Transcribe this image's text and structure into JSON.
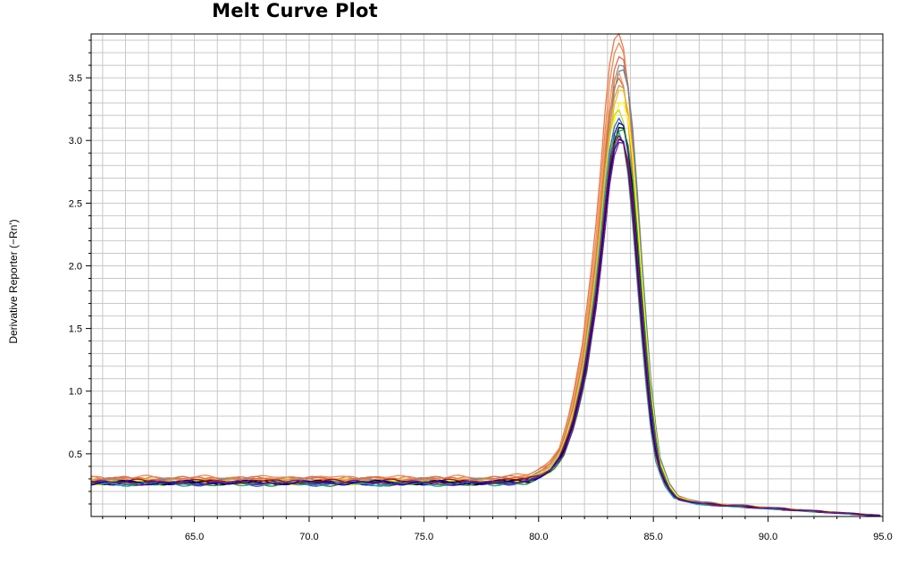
{
  "chart_data": {
    "type": "line",
    "title": "Melt Curve Plot",
    "xlabel": "",
    "ylabel": "Derivative Reporter (−Rn')",
    "xlim": [
      60.5,
      95.0
    ],
    "ylim": [
      0.0,
      3.85
    ],
    "x_ticks": [
      65.0,
      70.0,
      75.0,
      80.0,
      85.0,
      90.0,
      95.0
    ],
    "x_tick_labels": [
      "65.0",
      "70.0",
      "75.0",
      "80.0",
      "85.0",
      "90.0",
      "95.0"
    ],
    "y_ticks": [
      0.5,
      1.0,
      1.5,
      2.0,
      2.5,
      3.0,
      3.5
    ],
    "y_tick_labels": [
      "0.5",
      "1.0",
      "1.5",
      "2.0",
      "2.5",
      "3.0",
      "3.5"
    ],
    "grid": true,
    "legend": "none",
    "curve_shape": {
      "x": [
        60.5,
        62.0,
        64.0,
        66.0,
        68.0,
        70.0,
        72.0,
        74.0,
        76.0,
        78.0,
        79.5,
        80.5,
        81.0,
        81.5,
        82.0,
        82.5,
        82.8,
        83.0,
        83.2,
        83.4,
        83.55,
        83.7,
        83.9,
        84.1,
        84.3,
        84.6,
        84.9,
        85.2,
        85.6,
        86.0,
        87.0,
        88.0,
        90.0,
        92.0,
        94.0,
        95.0
      ],
      "relative": [
        0,
        0,
        0,
        0,
        0,
        0,
        0,
        0,
        0,
        0,
        0.005,
        0.03,
        0.07,
        0.16,
        0.3,
        0.52,
        0.7,
        0.84,
        0.94,
        0.99,
        1.0,
        0.99,
        0.93,
        0.81,
        0.65,
        0.42,
        0.22,
        0.1,
        0.04,
        0.01,
        0,
        0,
        0,
        0,
        0,
        0
      ]
    },
    "series": [
      {
        "color": "#e8784a",
        "peak": 3.86,
        "baseline": 0.3,
        "tail": 0.05
      },
      {
        "color": "#e98a55",
        "peak": 3.78,
        "baseline": 0.31,
        "tail": 0.05
      },
      {
        "color": "#d9704a",
        "peak": 3.68,
        "baseline": 0.3,
        "tail": 0.05
      },
      {
        "color": "#8c8c8c",
        "peak": 3.62,
        "baseline": 0.29,
        "tail": 0.05
      },
      {
        "color": "#6e7f9a",
        "peak": 3.58,
        "baseline": 0.28,
        "tail": 0.06
      },
      {
        "color": "#f4a460",
        "peak": 3.55,
        "baseline": 0.29,
        "tail": 0.05
      },
      {
        "color": "#e07040",
        "peak": 3.5,
        "baseline": 0.3,
        "tail": 0.05
      },
      {
        "color": "#c8a24b",
        "peak": 3.45,
        "baseline": 0.28,
        "tail": 0.05
      },
      {
        "color": "#f0c020",
        "peak": 3.42,
        "baseline": 0.28,
        "tail": 0.05
      },
      {
        "color": "#ffff00",
        "peak": 3.32,
        "baseline": 0.27,
        "tail": 0.05
      },
      {
        "color": "#c8d432",
        "peak": 3.25,
        "baseline": 0.27,
        "tail": 0.05
      },
      {
        "color": "#2e6ad6",
        "peak": 3.18,
        "baseline": 0.26,
        "tail": 0.04
      },
      {
        "color": "#0a1a8c",
        "peak": 3.15,
        "baseline": 0.27,
        "tail": 0.04
      },
      {
        "color": "#000000",
        "peak": 3.12,
        "baseline": 0.27,
        "tail": 0.04
      },
      {
        "color": "#1e9040",
        "peak": 3.1,
        "baseline": 0.26,
        "tail": 0.04
      },
      {
        "color": "#2aa0a0",
        "peak": 3.07,
        "baseline": 0.26,
        "tail": 0.04
      },
      {
        "color": "#a01010",
        "peak": 3.04,
        "baseline": 0.28,
        "tail": 0.05
      },
      {
        "color": "#0000c0",
        "peak": 3.02,
        "baseline": 0.27,
        "tail": 0.045
      },
      {
        "color": "#7a1a7a",
        "peak": 3.0,
        "baseline": 0.27,
        "tail": 0.045
      }
    ]
  }
}
